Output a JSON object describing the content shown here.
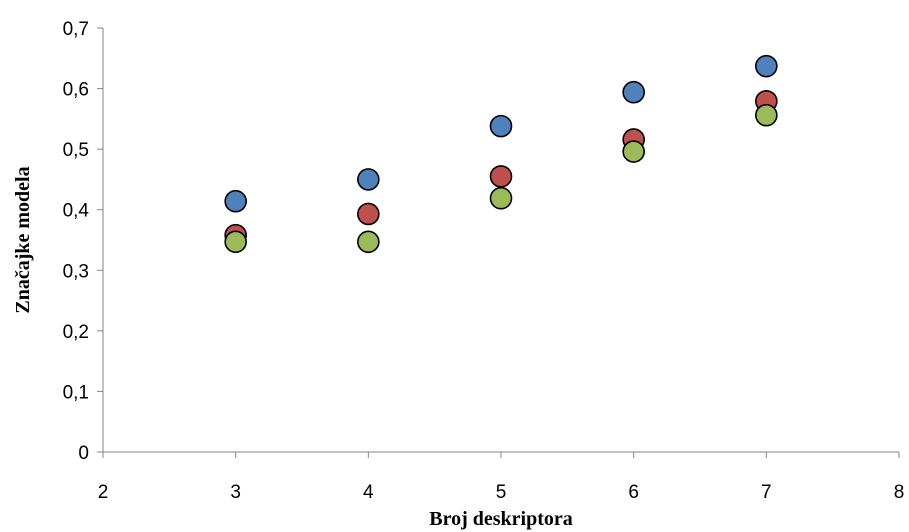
{
  "chart_data": {
    "type": "scatter",
    "title": "",
    "xlabel": "Broj deskriptora",
    "ylabel": "Značajke modela",
    "xlim": [
      2,
      8
    ],
    "ylim": [
      0,
      0.7
    ],
    "x_ticks": [
      "2",
      "3",
      "4",
      "5",
      "6",
      "7",
      "8"
    ],
    "y_ticks": [
      "0",
      "0,1",
      "0,2",
      "0,3",
      "0,4",
      "0,5",
      "0,6",
      "0,7"
    ],
    "grid": false,
    "legend": "none",
    "series": [
      {
        "color": "#4f81bd",
        "points": [
          [
            3,
            0.414
          ],
          [
            4,
            0.45
          ],
          [
            5,
            0.538
          ],
          [
            6,
            0.594
          ],
          [
            7,
            0.637
          ]
        ]
      },
      {
        "color": "#c0504d",
        "points": [
          [
            3,
            0.358
          ],
          [
            4,
            0.393
          ],
          [
            5,
            0.455
          ],
          [
            6,
            0.516
          ],
          [
            7,
            0.579
          ]
        ]
      },
      {
        "color": "#9bbb59",
        "points": [
          [
            3,
            0.347
          ],
          [
            4,
            0.347
          ],
          [
            5,
            0.419
          ],
          [
            6,
            0.496
          ],
          [
            7,
            0.556
          ]
        ]
      }
    ]
  }
}
